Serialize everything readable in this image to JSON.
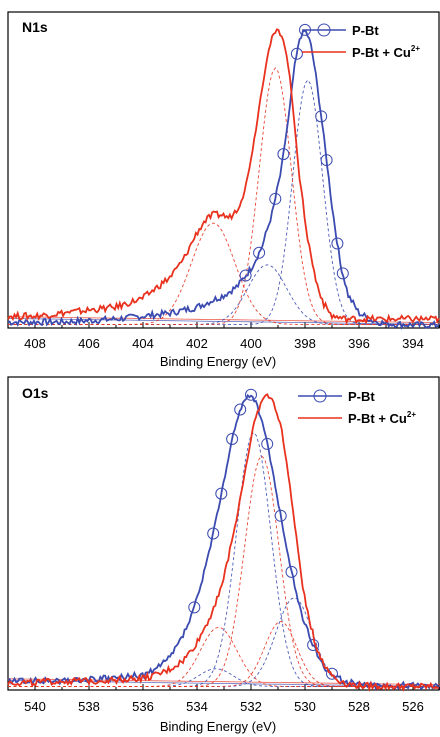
{
  "chart_data": [
    {
      "type": "line",
      "panel_label": "N1s",
      "xlabel": "Binding Energy (eV)",
      "ylabel": "",
      "xlim": [
        409,
        393
      ],
      "x_reversed": true,
      "ylim": [
        0,
        1.06
      ],
      "xticks": [
        408,
        406,
        404,
        402,
        400,
        398,
        396,
        394
      ],
      "legend": {
        "placement": "top-right",
        "entries": [
          {
            "name": "P-Bt",
            "sup": "",
            "color": "#3b4bb0",
            "marker": "open-circle"
          },
          {
            "name": "P-Bt + Cu",
            "sup": "2+",
            "color": "#e8321e",
            "marker": "none"
          }
        ]
      },
      "series": [
        {
          "name": "P-Bt",
          "color": "#3b4bb0",
          "role": "data",
          "marker_x": [
            398.3,
            398.0,
            397.4,
            397.2,
            396.8,
            396.6,
            398.8,
            399.1,
            399.7,
            400.2
          ],
          "x": [
            409,
            408,
            407,
            406,
            405,
            404,
            403,
            402,
            401.5,
            401,
            400.5,
            400,
            399.6,
            399.2,
            398.9,
            398.6,
            398.4,
            398.2,
            398.0,
            397.8,
            397.6,
            397.3,
            397.0,
            396.7,
            396.4,
            396.0,
            395.5,
            395,
            394,
            393
          ],
          "y": [
            0.02,
            0.02,
            0.02,
            0.025,
            0.03,
            0.04,
            0.05,
            0.07,
            0.09,
            0.11,
            0.14,
            0.2,
            0.27,
            0.39,
            0.52,
            0.71,
            0.87,
            0.97,
            1.0,
            0.96,
            0.85,
            0.64,
            0.41,
            0.22,
            0.11,
            0.05,
            0.025,
            0.015,
            0.01,
            0.01
          ]
        },
        {
          "name": "P-Bt + Cu2+",
          "color": "#e8321e",
          "role": "data",
          "x": [
            409,
            408,
            407,
            406,
            405,
            404,
            403,
            402.5,
            402,
            401.7,
            401.4,
            401.1,
            400.8,
            400.5,
            400.2,
            399.9,
            399.6,
            399.4,
            399.2,
            399.0,
            398.8,
            398.6,
            398.4,
            398.2,
            397.9,
            397.6,
            397.3,
            397.0,
            396.5,
            396,
            395,
            394,
            393
          ],
          "y": [
            0.04,
            0.04,
            0.05,
            0.06,
            0.07,
            0.1,
            0.17,
            0.23,
            0.32,
            0.36,
            0.38,
            0.38,
            0.37,
            0.4,
            0.47,
            0.62,
            0.8,
            0.91,
            0.98,
            1.0,
            0.97,
            0.87,
            0.7,
            0.5,
            0.3,
            0.16,
            0.08,
            0.04,
            0.03,
            0.03,
            0.03,
            0.03,
            0.03
          ]
        }
      ],
      "fits": [
        {
          "color": "#3b4bb0",
          "center": 397.9,
          "height": 0.82,
          "width": 1.3
        },
        {
          "color": "#3b4bb0",
          "center": 399.4,
          "height": 0.2,
          "width": 1.7
        },
        {
          "color": "#e8321e",
          "center": 399.1,
          "height": 0.86,
          "width": 1.4
        },
        {
          "color": "#e8321e",
          "center": 401.4,
          "height": 0.34,
          "width": 1.9
        }
      ]
    },
    {
      "type": "line",
      "panel_label": "O1s",
      "xlabel": "Binding Energy (eV)",
      "ylabel": "",
      "xlim": [
        541,
        525
      ],
      "x_reversed": true,
      "ylim": [
        0,
        1.06
      ],
      "xticks": [
        540,
        538,
        536,
        534,
        532,
        530,
        528,
        526
      ],
      "legend": {
        "placement": "top-right",
        "entries": [
          {
            "name": "P-Bt",
            "sup": "",
            "color": "#3b4bb0",
            "marker": "open-circle"
          },
          {
            "name": "P-Bt + Cu",
            "sup": "2+",
            "color": "#e8321e",
            "marker": "none"
          }
        ]
      },
      "series": [
        {
          "name": "P-Bt",
          "color": "#3b4bb0",
          "role": "data",
          "marker_x": [
            534.1,
            533.4,
            533.1,
            532.7,
            532.4,
            532.0,
            531.4,
            530.9,
            530.5,
            529.7,
            529.0
          ],
          "x": [
            541,
            540,
            539,
            538,
            537,
            536,
            535.5,
            535,
            534.6,
            534.2,
            533.8,
            533.4,
            533.0,
            532.7,
            532.4,
            532.2,
            532.0,
            531.8,
            531.5,
            531.2,
            530.9,
            530.6,
            530.3,
            530.0,
            529.6,
            529.2,
            528.8,
            528.4,
            528,
            527,
            526,
            525
          ],
          "y": [
            0.03,
            0.03,
            0.03,
            0.035,
            0.04,
            0.05,
            0.07,
            0.11,
            0.17,
            0.25,
            0.37,
            0.53,
            0.71,
            0.85,
            0.95,
            0.99,
            1.0,
            0.97,
            0.88,
            0.74,
            0.59,
            0.44,
            0.32,
            0.22,
            0.13,
            0.07,
            0.04,
            0.025,
            0.02,
            0.015,
            0.015,
            0.015
          ]
        },
        {
          "name": "P-Bt + Cu2+",
          "color": "#e8321e",
          "role": "data",
          "x": [
            541,
            540,
            539,
            538,
            537,
            536,
            535.5,
            535,
            534.5,
            534,
            533.5,
            533.0,
            532.6,
            532.2,
            531.9,
            531.6,
            531.4,
            531.2,
            530.9,
            530.6,
            530.3,
            530.0,
            529.6,
            529.2,
            528.8,
            528.4,
            528,
            527,
            526,
            525
          ],
          "y": [
            0.025,
            0.025,
            0.03,
            0.03,
            0.035,
            0.04,
            0.05,
            0.07,
            0.1,
            0.16,
            0.25,
            0.38,
            0.55,
            0.75,
            0.9,
            0.98,
            1.0,
            0.98,
            0.9,
            0.72,
            0.5,
            0.3,
            0.15,
            0.07,
            0.035,
            0.02,
            0.015,
            0.012,
            0.012,
            0.012
          ]
        }
      ],
      "fits": [
        {
          "color": "#3b4bb0",
          "center": 531.9,
          "height": 0.86,
          "width": 1.5
        },
        {
          "color": "#3b4bb0",
          "center": 530.4,
          "height": 0.3,
          "width": 1.6
        },
        {
          "color": "#3b4bb0",
          "center": 533.3,
          "height": 0.06,
          "width": 1.5
        },
        {
          "color": "#e8321e",
          "center": 531.6,
          "height": 0.78,
          "width": 1.5
        },
        {
          "color": "#e8321e",
          "center": 533.2,
          "height": 0.2,
          "width": 1.6
        },
        {
          "color": "#e8321e",
          "center": 530.9,
          "height": 0.22,
          "width": 1.4
        }
      ]
    }
  ]
}
